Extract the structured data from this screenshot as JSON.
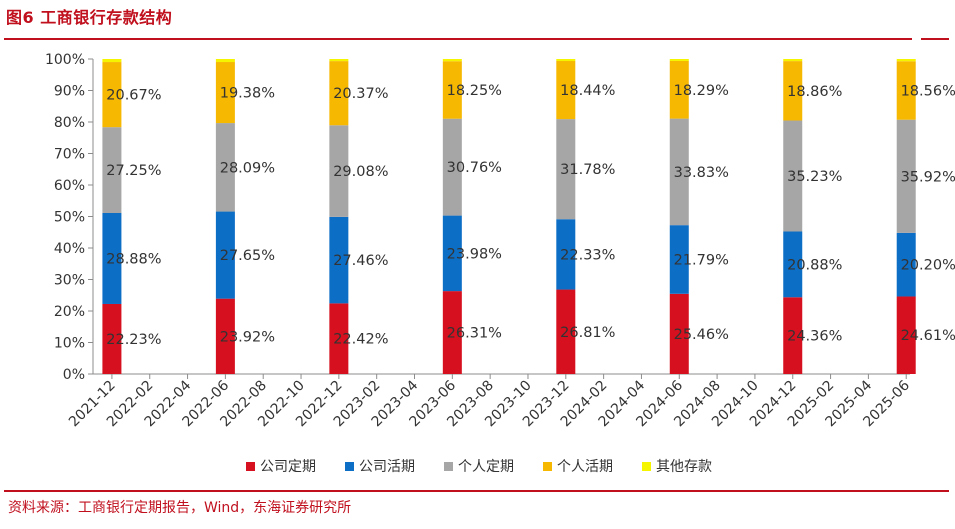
{
  "header": {
    "title": "图6   工商银行存款结构"
  },
  "footer": {
    "source": "资料来源：工商银行定期报告，Wind，东海证券研究所"
  },
  "chart_data": {
    "type": "bar",
    "stacked": true,
    "ylim": [
      0,
      100
    ],
    "y_ticks": [
      "0%",
      "10%",
      "20%",
      "30%",
      "40%",
      "50%",
      "60%",
      "70%",
      "80%",
      "90%",
      "100%"
    ],
    "x_ticks": [
      "2021-12",
      "2022-02",
      "2022-04",
      "2022-06",
      "2022-08",
      "2022-10",
      "2022-12",
      "2023-02",
      "2023-04",
      "2023-06",
      "2023-08",
      "2023-10",
      "2023-12",
      "2024-02",
      "2024-04",
      "2024-06",
      "2024-08",
      "2024-10",
      "2024-12",
      "2025-02",
      "2025-04",
      "2025-06"
    ],
    "categories": [
      "2021-12",
      "2022-06",
      "2022-12",
      "2023-06",
      "2023-12",
      "2024-06",
      "2024-12",
      "2025-06"
    ],
    "legend_position": "bottom",
    "grid": false,
    "series": [
      {
        "name": "公司定期",
        "color": "#d6101e",
        "values": [
          22.23,
          23.92,
          22.42,
          26.31,
          26.81,
          25.46,
          24.36,
          24.61
        ],
        "labels": [
          "22.23%",
          "23.92%",
          "22.42%",
          "26.31%",
          "26.81%",
          "25.46%",
          "24.36%",
          "24.61%"
        ]
      },
      {
        "name": "公司活期",
        "color": "#0d6ec6",
        "values": [
          28.88,
          27.65,
          27.46,
          23.98,
          22.33,
          21.79,
          20.88,
          20.2
        ],
        "labels": [
          "28.88%",
          "27.65%",
          "27.46%",
          "23.98%",
          "22.33%",
          "21.79%",
          "20.88%",
          "20.20%"
        ]
      },
      {
        "name": "个人定期",
        "color": "#a6a6a6",
        "values": [
          27.25,
          28.09,
          29.08,
          30.76,
          31.78,
          33.83,
          35.23,
          35.92
        ],
        "labels": [
          "27.25%",
          "28.09%",
          "29.08%",
          "30.76%",
          "31.78%",
          "33.83%",
          "35.23%",
          "35.92%"
        ]
      },
      {
        "name": "个人活期",
        "color": "#f6b800",
        "values": [
          20.67,
          19.38,
          20.37,
          18.25,
          18.44,
          18.29,
          18.86,
          18.56
        ],
        "labels": [
          "20.67%",
          "19.38%",
          "20.37%",
          "18.25%",
          "18.44%",
          "18.29%",
          "18.86%",
          "18.56%"
        ]
      },
      {
        "name": "其他存款",
        "color": "#f5f500",
        "values": [
          0.97,
          0.96,
          0.67,
          0.7,
          0.64,
          0.63,
          0.67,
          0.71
        ],
        "labels": []
      }
    ]
  }
}
